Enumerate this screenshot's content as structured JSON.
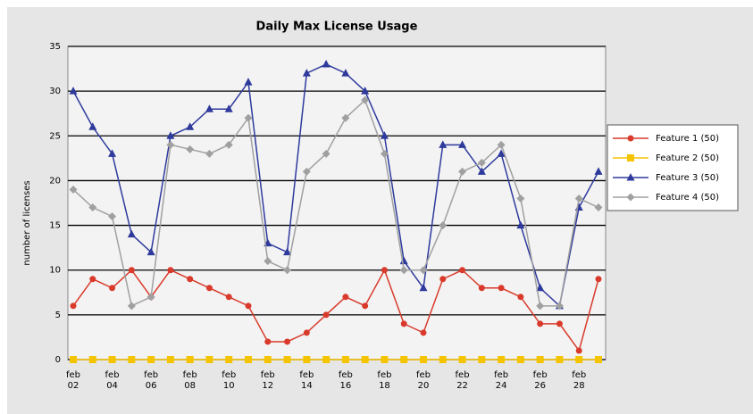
{
  "chart_data": {
    "type": "line",
    "title": "Daily Max License Usage",
    "y_label": "number of licenses",
    "categories": [
      "feb 02",
      null,
      "feb 04",
      null,
      "feb 06",
      null,
      "feb 08",
      null,
      "feb 10",
      null,
      "feb 12",
      null,
      "feb 14",
      null,
      "feb 16",
      null,
      "feb 18",
      null,
      "feb 20",
      null,
      "feb 22",
      null,
      "feb 24",
      null,
      "feb 26",
      null,
      "feb 28",
      null
    ],
    "series": [
      {
        "name": "Feature 1 (50)",
        "color": "#d93a2b",
        "marker": "circle",
        "values": [
          6,
          9,
          8,
          10,
          7,
          10,
          9,
          8,
          7,
          6,
          2,
          2,
          3,
          5,
          7,
          6,
          10,
          4,
          3,
          9,
          10,
          8,
          8,
          7,
          4,
          4,
          1,
          9
        ]
      },
      {
        "name": "Feature 2 (50)",
        "color": "#f5c400",
        "marker": "square",
        "values": [
          0,
          0,
          0,
          0,
          0,
          0,
          0,
          0,
          0,
          0,
          0,
          0,
          0,
          0,
          0,
          0,
          0,
          0,
          0,
          0,
          0,
          0,
          0,
          0,
          0,
          0,
          0,
          0
        ]
      },
      {
        "name": "Feature 3 (50)",
        "color": "#2e3a9c",
        "marker": "triangle",
        "values": [
          30,
          26,
          23,
          14,
          12,
          25,
          26,
          28,
          28,
          31,
          13,
          12,
          32,
          33,
          32,
          30,
          25,
          11,
          8,
          24,
          24,
          21,
          23,
          15,
          8,
          6,
          17,
          21
        ]
      },
      {
        "name": "Feature 4 (50)",
        "color": "#a0a0a0",
        "marker": "diamond",
        "values": [
          19,
          17,
          16,
          6,
          7,
          24,
          23.5,
          23,
          24,
          27,
          11,
          10,
          21,
          23,
          27,
          29,
          23,
          10,
          10,
          15,
          21,
          22,
          24,
          18,
          6,
          6,
          18,
          17
        ]
      }
    ],
    "ylim": [
      0,
      35
    ],
    "yticks": [
      0,
      5,
      10,
      15,
      20,
      25,
      30,
      35
    ],
    "grid": true
  }
}
